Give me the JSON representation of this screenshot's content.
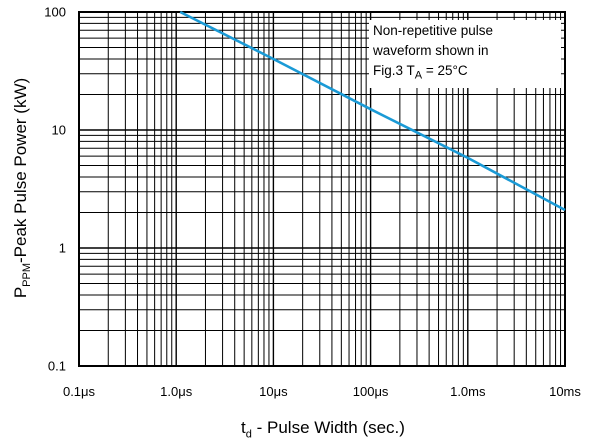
{
  "chart_data": {
    "type": "line",
    "x_scale": "log",
    "y_scale": "log",
    "xlim_seconds": [
      1e-07,
      0.01
    ],
    "ylim": [
      0.1,
      100
    ],
    "grid": true,
    "xlabel": {
      "main": "t",
      "sub": "d",
      "rest": " - Pulse Width (sec.)"
    },
    "ylabel": {
      "main": "P",
      "sub": "PPM",
      "rest": "-Peak Pulse Power (kW)"
    },
    "x_ticks": [
      {
        "value": 1e-07,
        "label": "0.1μs"
      },
      {
        "value": 1e-06,
        "label": "1.0μs"
      },
      {
        "value": 1e-05,
        "label": "10μs"
      },
      {
        "value": 0.0001,
        "label": "100μs"
      },
      {
        "value": 0.001,
        "label": "1.0ms"
      },
      {
        "value": 0.01,
        "label": "10ms"
      }
    ],
    "y_ticks": [
      {
        "value": 0.1,
        "label": "0.1"
      },
      {
        "value": 1,
        "label": "1"
      },
      {
        "value": 10,
        "label": "10"
      },
      {
        "value": 100,
        "label": "100"
      }
    ],
    "series": [
      {
        "color": "#1a9ad6",
        "points": [
          {
            "x": 1.1e-06,
            "y": 100
          },
          {
            "x": 1e-05,
            "y": 40
          },
          {
            "x": 0.0001,
            "y": 15
          },
          {
            "x": 0.001,
            "y": 5.8
          },
          {
            "x": 0.01,
            "y": 2.1
          }
        ]
      }
    ],
    "annotation": {
      "line1": "Non-repetitive pulse",
      "line2": "waveform shown in",
      "line3_main": "Fig.3 T",
      "line3_sub": "A",
      "line3_rest": " = 25°C"
    }
  }
}
